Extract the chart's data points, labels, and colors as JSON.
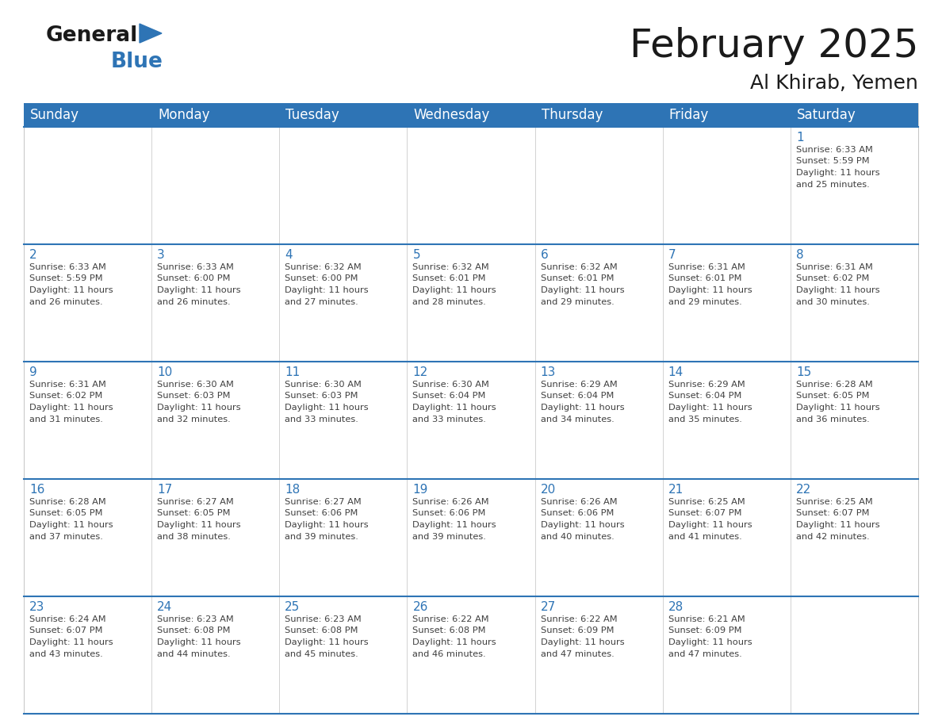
{
  "title": "February 2025",
  "subtitle": "Al Khirab, Yemen",
  "header_color": "#2E74B5",
  "header_text_color": "#FFFFFF",
  "days_of_week": [
    "Sunday",
    "Monday",
    "Tuesday",
    "Wednesday",
    "Thursday",
    "Friday",
    "Saturday"
  ],
  "number_color": "#2E74B5",
  "text_color": "#404040",
  "line_color": "#2E74B5",
  "calendar_data": [
    [
      null,
      null,
      null,
      null,
      null,
      null,
      {
        "day": 1,
        "sunrise": "6:33 AM",
        "sunset": "5:59 PM",
        "daylight": "11 hours and 25 minutes."
      }
    ],
    [
      {
        "day": 2,
        "sunrise": "6:33 AM",
        "sunset": "5:59 PM",
        "daylight": "11 hours and 26 minutes."
      },
      {
        "day": 3,
        "sunrise": "6:33 AM",
        "sunset": "6:00 PM",
        "daylight": "11 hours and 26 minutes."
      },
      {
        "day": 4,
        "sunrise": "6:32 AM",
        "sunset": "6:00 PM",
        "daylight": "11 hours and 27 minutes."
      },
      {
        "day": 5,
        "sunrise": "6:32 AM",
        "sunset": "6:01 PM",
        "daylight": "11 hours and 28 minutes."
      },
      {
        "day": 6,
        "sunrise": "6:32 AM",
        "sunset": "6:01 PM",
        "daylight": "11 hours and 29 minutes."
      },
      {
        "day": 7,
        "sunrise": "6:31 AM",
        "sunset": "6:01 PM",
        "daylight": "11 hours and 29 minutes."
      },
      {
        "day": 8,
        "sunrise": "6:31 AM",
        "sunset": "6:02 PM",
        "daylight": "11 hours and 30 minutes."
      }
    ],
    [
      {
        "day": 9,
        "sunrise": "6:31 AM",
        "sunset": "6:02 PM",
        "daylight": "11 hours and 31 minutes."
      },
      {
        "day": 10,
        "sunrise": "6:30 AM",
        "sunset": "6:03 PM",
        "daylight": "11 hours and 32 minutes."
      },
      {
        "day": 11,
        "sunrise": "6:30 AM",
        "sunset": "6:03 PM",
        "daylight": "11 hours and 33 minutes."
      },
      {
        "day": 12,
        "sunrise": "6:30 AM",
        "sunset": "6:04 PM",
        "daylight": "11 hours and 33 minutes."
      },
      {
        "day": 13,
        "sunrise": "6:29 AM",
        "sunset": "6:04 PM",
        "daylight": "11 hours and 34 minutes."
      },
      {
        "day": 14,
        "sunrise": "6:29 AM",
        "sunset": "6:04 PM",
        "daylight": "11 hours and 35 minutes."
      },
      {
        "day": 15,
        "sunrise": "6:28 AM",
        "sunset": "6:05 PM",
        "daylight": "11 hours and 36 minutes."
      }
    ],
    [
      {
        "day": 16,
        "sunrise": "6:28 AM",
        "sunset": "6:05 PM",
        "daylight": "11 hours and 37 minutes."
      },
      {
        "day": 17,
        "sunrise": "6:27 AM",
        "sunset": "6:05 PM",
        "daylight": "11 hours and 38 minutes."
      },
      {
        "day": 18,
        "sunrise": "6:27 AM",
        "sunset": "6:06 PM",
        "daylight": "11 hours and 39 minutes."
      },
      {
        "day": 19,
        "sunrise": "6:26 AM",
        "sunset": "6:06 PM",
        "daylight": "11 hours and 39 minutes."
      },
      {
        "day": 20,
        "sunrise": "6:26 AM",
        "sunset": "6:06 PM",
        "daylight": "11 hours and 40 minutes."
      },
      {
        "day": 21,
        "sunrise": "6:25 AM",
        "sunset": "6:07 PM",
        "daylight": "11 hours and 41 minutes."
      },
      {
        "day": 22,
        "sunrise": "6:25 AM",
        "sunset": "6:07 PM",
        "daylight": "11 hours and 42 minutes."
      }
    ],
    [
      {
        "day": 23,
        "sunrise": "6:24 AM",
        "sunset": "6:07 PM",
        "daylight": "11 hours and 43 minutes."
      },
      {
        "day": 24,
        "sunrise": "6:23 AM",
        "sunset": "6:08 PM",
        "daylight": "11 hours and 44 minutes."
      },
      {
        "day": 25,
        "sunrise": "6:23 AM",
        "sunset": "6:08 PM",
        "daylight": "11 hours and 45 minutes."
      },
      {
        "day": 26,
        "sunrise": "6:22 AM",
        "sunset": "6:08 PM",
        "daylight": "11 hours and 46 minutes."
      },
      {
        "day": 27,
        "sunrise": "6:22 AM",
        "sunset": "6:09 PM",
        "daylight": "11 hours and 47 minutes."
      },
      {
        "day": 28,
        "sunrise": "6:21 AM",
        "sunset": "6:09 PM",
        "daylight": "11 hours and 47 minutes."
      },
      null
    ]
  ],
  "logo_text_general": "General",
  "logo_text_blue": "Blue",
  "logo_triangle_color": "#2E74B5",
  "title_fontsize": 36,
  "subtitle_fontsize": 18,
  "day_number_fontsize": 11,
  "cell_text_fontsize": 8.2,
  "header_day_fontsize": 12
}
